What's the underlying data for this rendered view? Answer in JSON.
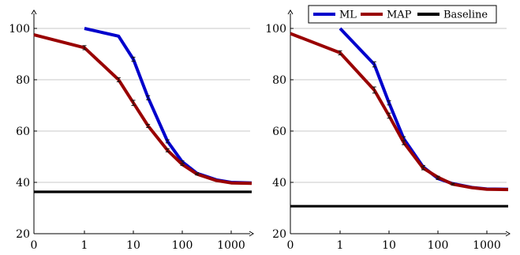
{
  "chart_data": [
    {
      "type": "line",
      "x_scale": "symlog",
      "x_ticks": [
        0,
        1,
        10,
        100,
        1000
      ],
      "x_tick_labels": [
        "0",
        "1",
        "10",
        "100",
        "1000"
      ],
      "y_ticks": [
        20,
        40,
        60,
        80,
        100
      ],
      "y_tick_labels": [
        "20",
        "40",
        "60",
        "80",
        "100"
      ],
      "ylim": [
        20,
        105
      ],
      "grid": "horizontal",
      "legend": "none",
      "series": [
        {
          "name": "ML",
          "color": "#0000cc",
          "x": [
            1,
            5,
            10,
            20,
            50,
            100,
            200,
            500,
            1000,
            3000
          ],
          "y": [
            100,
            97,
            88,
            73,
            56,
            48,
            43.5,
            41,
            40,
            39.8
          ],
          "err": [
            0,
            0,
            0.8,
            0.8,
            0.6,
            0.4,
            0.3,
            0,
            0,
            0
          ]
        },
        {
          "name": "MAP",
          "color": "#990000",
          "x": [
            0,
            1,
            5,
            10,
            20,
            50,
            100,
            200,
            500,
            1000,
            3000
          ],
          "y": [
            97.5,
            92.5,
            80,
            71,
            62,
            52.5,
            47,
            43.2,
            40.7,
            39.8,
            39.6
          ],
          "err": [
            0,
            0.8,
            0.8,
            1.0,
            0.6,
            0.6,
            0.4,
            0.3,
            0,
            0,
            0
          ]
        },
        {
          "name": "Baseline",
          "color": "#000000",
          "x": [
            0,
            3000
          ],
          "y": [
            36.3,
            36.3
          ],
          "err": [
            0,
            0
          ]
        }
      ]
    },
    {
      "type": "line",
      "x_scale": "symlog",
      "x_ticks": [
        0,
        1,
        10,
        100,
        1000
      ],
      "x_tick_labels": [
        "0",
        "1",
        "10",
        "100",
        "1000"
      ],
      "y_ticks": [
        20,
        40,
        60,
        80,
        100
      ],
      "y_tick_labels": [
        "20",
        "40",
        "60",
        "80",
        "100"
      ],
      "ylim": [
        20,
        105
      ],
      "grid": "horizontal",
      "legend": "top-right",
      "legend_entries": [
        "ML",
        "MAP",
        "Baseline"
      ],
      "series": [
        {
          "name": "ML",
          "color": "#0000cc",
          "x": [
            1,
            5,
            10,
            20,
            50,
            100,
            200,
            500,
            1000,
            3000
          ],
          "y": [
            100,
            86,
            71,
            57,
            46,
            41.5,
            39.5,
            38,
            37.4,
            37.3
          ],
          "err": [
            0,
            1.0,
            0.8,
            0.8,
            0.6,
            0.4,
            0.3,
            0,
            0,
            0
          ]
        },
        {
          "name": "MAP",
          "color": "#990000",
          "x": [
            0,
            1,
            5,
            10,
            20,
            50,
            100,
            200,
            500,
            1000,
            3000
          ],
          "y": [
            98,
            90.5,
            76,
            66,
            55.5,
            45.5,
            42,
            39.3,
            37.9,
            37.3,
            37.2
          ],
          "err": [
            0,
            0.8,
            1.2,
            1.0,
            0.8,
            0.6,
            0.4,
            0.3,
            0,
            0,
            0
          ]
        },
        {
          "name": "Baseline",
          "color": "#000000",
          "x": [
            0,
            3000
          ],
          "y": [
            30.7,
            30.7
          ],
          "err": [
            0,
            0
          ]
        }
      ]
    }
  ]
}
